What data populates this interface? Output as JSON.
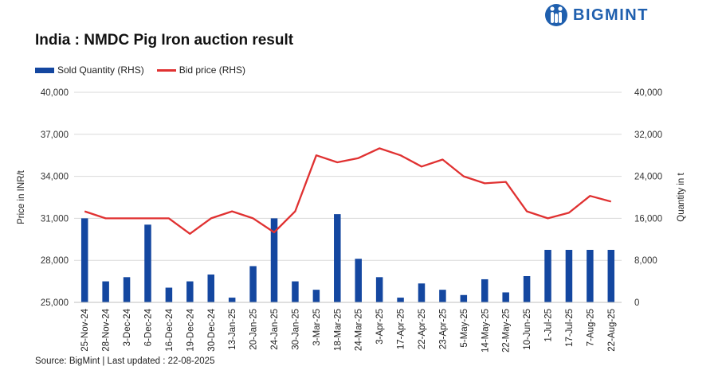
{
  "header": {
    "title": "India : NMDC Pig Iron auction result",
    "brand": "BIGMINT",
    "brand_color": "#1f5fae"
  },
  "legend": {
    "bar_label": "Sold Quantity (RHS)",
    "line_label": "Bid price (RHS)"
  },
  "footer": {
    "source": "Source: BigMint | Last updated : 22-08-2025"
  },
  "chart_data": {
    "type": "bar+line",
    "title": "India : NMDC Pig Iron auction result",
    "ylabel_left": "Price in INR/t",
    "ylabel_right": "Quantity in t",
    "ylim_left": [
      25000,
      40000
    ],
    "ylim_right": [
      0,
      40000
    ],
    "yticks_left": [
      "25,000",
      "28,000",
      "31,000",
      "34,000",
      "37,000",
      "40,000"
    ],
    "yticks_right": [
      "0",
      "8,000",
      "16,000",
      "24,000",
      "32,000",
      "40,000"
    ],
    "grid": true,
    "legend_position": "top-left",
    "categories": [
      "25-Nov-24",
      "28-Nov-24",
      "3-Dec-24",
      "6-Dec-24",
      "16-Dec-24",
      "19-Dec-24",
      "30-Dec-24",
      "13-Jan-25",
      "20-Jan-25",
      "24-Jan-25",
      "30-Jan-25",
      "3-Mar-25",
      "18-Mar-25",
      "24-Mar-25",
      "3-Apr-25",
      "17-Apr-25",
      "22-Apr-25",
      "23-Apr-25",
      "5-May-25",
      "14-May-25",
      "22-May-25",
      "10-Jun-25",
      "1-Jul-25",
      "17-Jul-25",
      "7-Aug-25",
      "22-Aug-25"
    ],
    "series": [
      {
        "name": "Sold Quantity (RHS)",
        "kind": "bar",
        "axis": "right",
        "color": "#1447a0",
        "values": [
          16000,
          4000,
          4800,
          14800,
          2800,
          4000,
          5300,
          900,
          6900,
          16000,
          4000,
          2400,
          16800,
          8300,
          4800,
          900,
          3600,
          2400,
          1400,
          4400,
          1900,
          5000,
          10000,
          10000,
          10000,
          10000
        ]
      },
      {
        "name": "Bid price (RHS)",
        "kind": "line",
        "axis": "left",
        "color": "#e03131",
        "values": [
          31500,
          31000,
          31000,
          31000,
          31000,
          29900,
          31000,
          31500,
          31000,
          30000,
          31500,
          35500,
          35000,
          35300,
          36000,
          35500,
          34700,
          35200,
          34000,
          33500,
          33600,
          31500,
          31000,
          31400,
          32600,
          32200
        ]
      }
    ]
  }
}
